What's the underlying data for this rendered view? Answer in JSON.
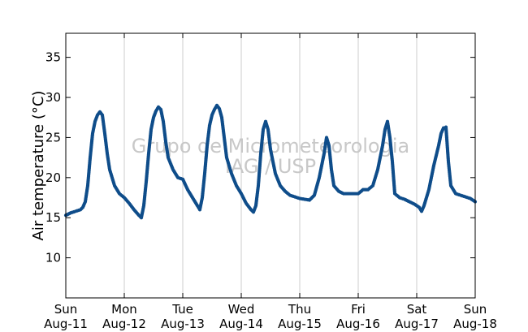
{
  "chart_data": {
    "type": "scatter",
    "title": "",
    "xlabel": "",
    "ylabel": "Air temperature (°C)",
    "ylim": [
      5,
      38
    ],
    "yticks": [
      10,
      15,
      20,
      25,
      30,
      35
    ],
    "xlim": [
      "2013-08-11T00:00",
      "2013-08-18T00:00"
    ],
    "xticks": [
      {
        "line1": "Sun",
        "line2": "Aug-11",
        "at": "2013-08-11T00:00"
      },
      {
        "line1": "Mon",
        "line2": "Aug-12",
        "at": "2013-08-12T00:00"
      },
      {
        "line1": "Tue",
        "line2": "Aug-13",
        "at": "2013-08-13T00:00"
      },
      {
        "line1": "Wed",
        "line2": "Aug-14",
        "at": "2013-08-14T00:00"
      },
      {
        "line1": "Thu",
        "line2": "Aug-15",
        "at": "2013-08-15T00:00"
      },
      {
        "line1": "Fri",
        "line2": "Aug-16",
        "at": "2013-08-16T00:00"
      },
      {
        "line1": "Sat",
        "line2": "Aug-17",
        "at": "2013-08-17T00:00"
      },
      {
        "line1": "Sun",
        "line2": "Aug-18",
        "at": "2013-08-18T00:00"
      }
    ],
    "grid": "vertical-at-ticks",
    "marker_color": "#0f4d8a",
    "watermark": [
      "Grupo de Micrometeorologia",
      "IAG / USP"
    ],
    "series": [
      {
        "points": [
          [
            "2013-08-11T00:00",
            15.3
          ],
          [
            "2013-08-11T02:00",
            15.6
          ],
          [
            "2013-08-11T04:00",
            15.8
          ],
          [
            "2013-08-11T06:00",
            16.0
          ],
          [
            "2013-08-11T07:00",
            16.3
          ],
          [
            "2013-08-11T08:00",
            17.0
          ],
          [
            "2013-08-11T09:00",
            19.0
          ],
          [
            "2013-08-11T10:00",
            22.5
          ],
          [
            "2013-08-11T11:00",
            25.5
          ],
          [
            "2013-08-11T12:00",
            27.0
          ],
          [
            "2013-08-11T13:00",
            27.8
          ],
          [
            "2013-08-11T14:00",
            28.2
          ],
          [
            "2013-08-11T15:00",
            27.8
          ],
          [
            "2013-08-11T16:00",
            25.5
          ],
          [
            "2013-08-11T17:00",
            23.0
          ],
          [
            "2013-08-11T18:00",
            21.0
          ],
          [
            "2013-08-11T20:00",
            19.0
          ],
          [
            "2013-08-11T22:00",
            18.0
          ],
          [
            "2013-08-12T00:00",
            17.5
          ],
          [
            "2013-08-12T02:00",
            16.8
          ],
          [
            "2013-08-12T04:00",
            16.0
          ],
          [
            "2013-08-12T06:00",
            15.3
          ],
          [
            "2013-08-12T07:00",
            15.0
          ],
          [
            "2013-08-12T08:00",
            16.5
          ],
          [
            "2013-08-12T09:00",
            19.5
          ],
          [
            "2013-08-12T10:00",
            23.0
          ],
          [
            "2013-08-12T11:00",
            26.0
          ],
          [
            "2013-08-12T12:00",
            27.5
          ],
          [
            "2013-08-12T13:00",
            28.3
          ],
          [
            "2013-08-12T14:00",
            28.8
          ],
          [
            "2013-08-12T15:00",
            28.5
          ],
          [
            "2013-08-12T16:00",
            27.0
          ],
          [
            "2013-08-12T17:00",
            24.5
          ],
          [
            "2013-08-12T18:00",
            22.5
          ],
          [
            "2013-08-12T20:00",
            21.0
          ],
          [
            "2013-08-12T22:00",
            20.0
          ],
          [
            "2013-08-13T00:00",
            19.8
          ],
          [
            "2013-08-13T02:00",
            18.5
          ],
          [
            "2013-08-13T04:00",
            17.5
          ],
          [
            "2013-08-13T06:00",
            16.5
          ],
          [
            "2013-08-13T07:00",
            16.0
          ],
          [
            "2013-08-13T08:00",
            17.5
          ],
          [
            "2013-08-13T09:00",
            20.5
          ],
          [
            "2013-08-13T10:00",
            24.0
          ],
          [
            "2013-08-13T11:00",
            26.5
          ],
          [
            "2013-08-13T12:00",
            27.8
          ],
          [
            "2013-08-13T13:00",
            28.5
          ],
          [
            "2013-08-13T14:00",
            29.0
          ],
          [
            "2013-08-13T15:00",
            28.6
          ],
          [
            "2013-08-13T16:00",
            27.5
          ],
          [
            "2013-08-13T17:00",
            25.0
          ],
          [
            "2013-08-13T18:00",
            22.5
          ],
          [
            "2013-08-13T20:00",
            20.5
          ],
          [
            "2013-08-13T22:00",
            19.0
          ],
          [
            "2013-08-14T00:00",
            18.0
          ],
          [
            "2013-08-14T02:00",
            16.8
          ],
          [
            "2013-08-14T04:00",
            16.0
          ],
          [
            "2013-08-14T05:00",
            15.7
          ],
          [
            "2013-08-14T06:00",
            16.5
          ],
          [
            "2013-08-14T07:00",
            19.0
          ],
          [
            "2013-08-14T08:00",
            23.0
          ],
          [
            "2013-08-14T09:00",
            26.0
          ],
          [
            "2013-08-14T10:00",
            27.0
          ],
          [
            "2013-08-14T11:00",
            26.0
          ],
          [
            "2013-08-14T12:00",
            23.5
          ],
          [
            "2013-08-14T14:00",
            20.5
          ],
          [
            "2013-08-14T16:00",
            19.0
          ],
          [
            "2013-08-14T18:00",
            18.3
          ],
          [
            "2013-08-14T20:00",
            17.8
          ],
          [
            "2013-08-14T22:00",
            17.6
          ],
          [
            "2013-08-15T00:00",
            17.4
          ],
          [
            "2013-08-15T02:00",
            17.3
          ],
          [
            "2013-08-15T04:00",
            17.2
          ],
          [
            "2013-08-15T06:00",
            17.8
          ],
          [
            "2013-08-15T08:00",
            20.0
          ],
          [
            "2013-08-15T10:00",
            23.0
          ],
          [
            "2013-08-15T11:00",
            25.0
          ],
          [
            "2013-08-15T12:00",
            24.0
          ],
          [
            "2013-08-15T13:00",
            21.0
          ],
          [
            "2013-08-15T14:00",
            19.0
          ],
          [
            "2013-08-15T16:00",
            18.3
          ],
          [
            "2013-08-15T18:00",
            18.0
          ],
          [
            "2013-08-15T20:00",
            18.0
          ],
          [
            "2013-08-15T22:00",
            18.0
          ],
          [
            "2013-08-16T00:00",
            18.0
          ],
          [
            "2013-08-16T02:00",
            18.5
          ],
          [
            "2013-08-16T04:00",
            18.5
          ],
          [
            "2013-08-16T06:00",
            19.0
          ],
          [
            "2013-08-16T08:00",
            21.0
          ],
          [
            "2013-08-16T10:00",
            24.0
          ],
          [
            "2013-08-16T11:00",
            26.0
          ],
          [
            "2013-08-16T12:00",
            27.0
          ],
          [
            "2013-08-16T13:00",
            25.0
          ],
          [
            "2013-08-16T14:00",
            22.0
          ],
          [
            "2013-08-16T15:00",
            18.0
          ],
          [
            "2013-08-16T17:00",
            17.5
          ],
          [
            "2013-08-16T19:00",
            17.3
          ],
          [
            "2013-08-16T21:00",
            17.0
          ],
          [
            "2013-08-16T23:00",
            16.7
          ],
          [
            "2013-08-17T01:00",
            16.3
          ],
          [
            "2013-08-17T02:00",
            15.8
          ],
          [
            "2013-08-17T03:00",
            16.5
          ],
          [
            "2013-08-17T05:00",
            18.5
          ],
          [
            "2013-08-17T07:00",
            21.5
          ],
          [
            "2013-08-17T09:00",
            24.0
          ],
          [
            "2013-08-17T10:00",
            25.5
          ],
          [
            "2013-08-17T11:00",
            26.2
          ],
          [
            "2013-08-17T12:00",
            26.3
          ],
          [
            "2013-08-17T13:00",
            22.0
          ],
          [
            "2013-08-17T14:00",
            19.0
          ],
          [
            "2013-08-17T16:00",
            18.0
          ],
          [
            "2013-08-17T18:00",
            17.8
          ],
          [
            "2013-08-17T20:00",
            17.6
          ],
          [
            "2013-08-17T22:00",
            17.4
          ],
          [
            "2013-08-18T00:00",
            17.0
          ]
        ]
      }
    ]
  }
}
